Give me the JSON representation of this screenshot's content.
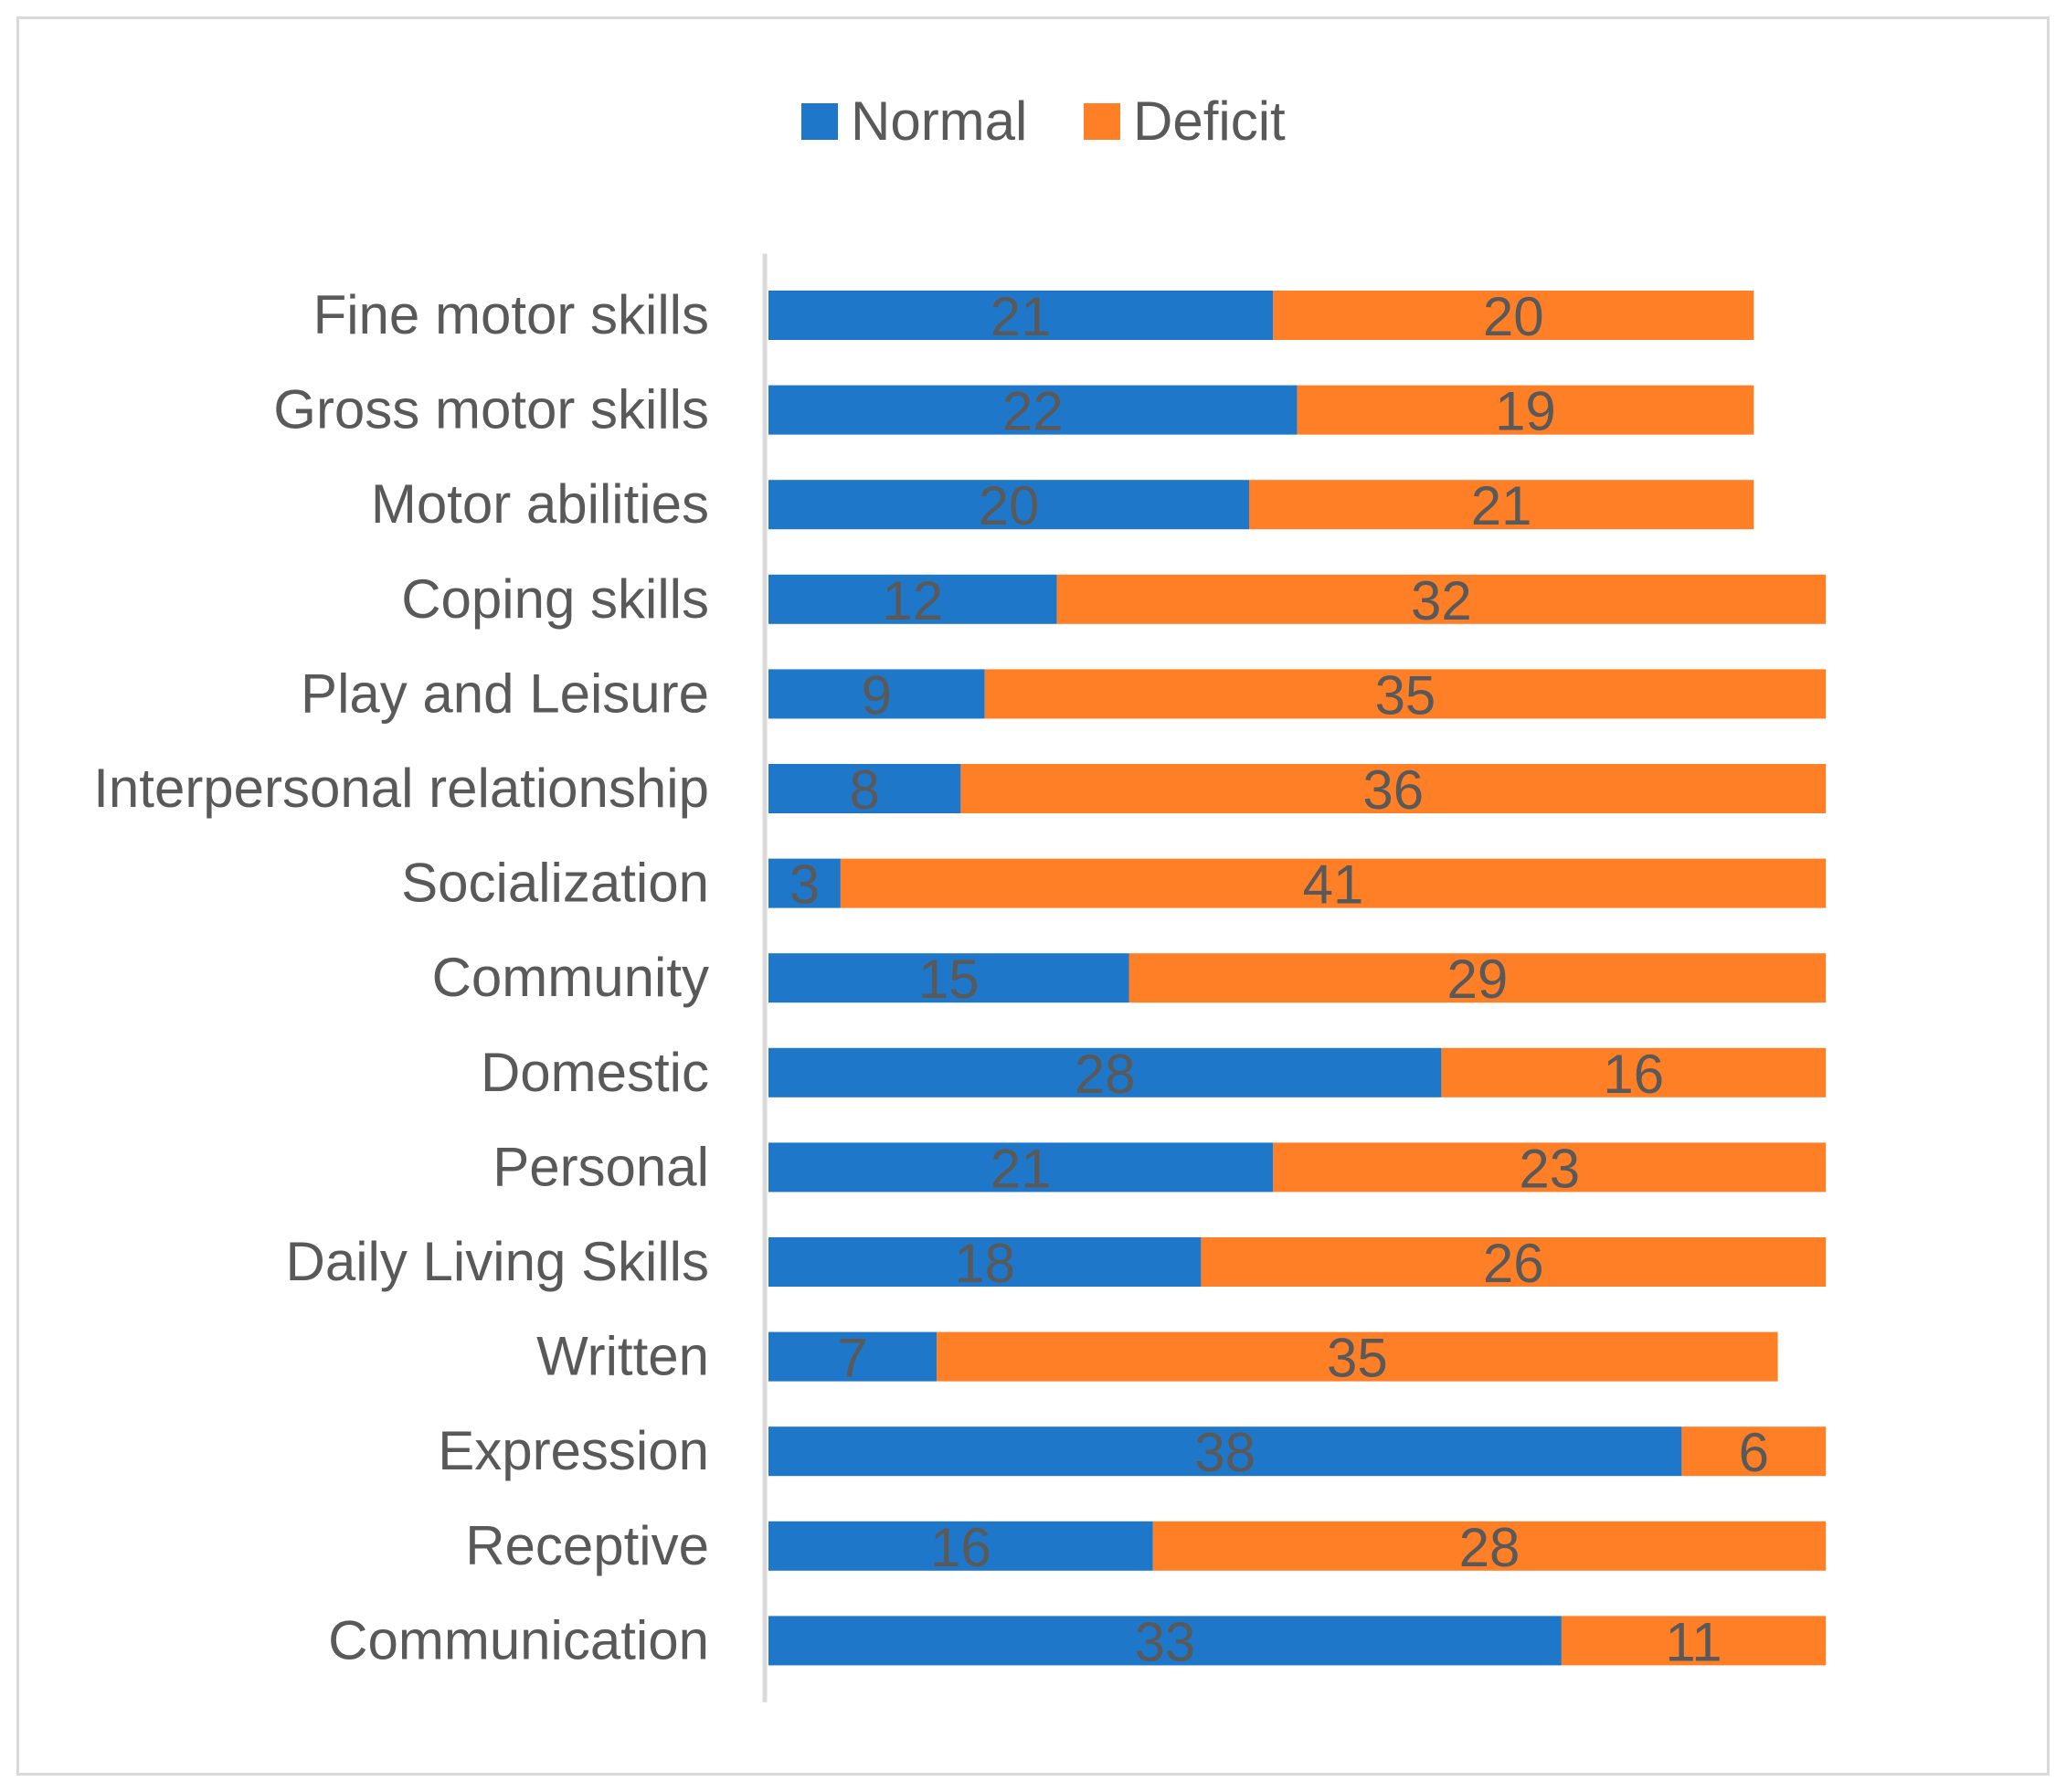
{
  "chart_data": {
    "type": "bar",
    "orientation": "horizontal",
    "stacked": true,
    "title": "",
    "xlabel": "",
    "ylabel": "",
    "grid": false,
    "legend_position": "top",
    "categories": [
      "Fine motor skills",
      "Gross motor skills",
      "Motor abilities",
      "Coping skills",
      "Play and Leisure",
      "Interpersonal relationship",
      "Socialization",
      "Community",
      "Domestic",
      "Personal",
      "Daily Living Skills",
      "Written",
      "Expression",
      "Receptive",
      "Communication"
    ],
    "series": [
      {
        "name": "Normal",
        "color": "#1f77c9",
        "values": [
          21,
          22,
          20,
          12,
          9,
          8,
          3,
          15,
          28,
          21,
          18,
          7,
          38,
          16,
          33
        ]
      },
      {
        "name": "Deficit",
        "color": "#ff7f27",
        "values": [
          20,
          19,
          21,
          32,
          35,
          36,
          41,
          29,
          16,
          23,
          26,
          35,
          6,
          28,
          11
        ]
      }
    ],
    "xlim": [
      0,
      44
    ],
    "data_label_color": "#595959",
    "axis_color": "#d9d9d9"
  }
}
